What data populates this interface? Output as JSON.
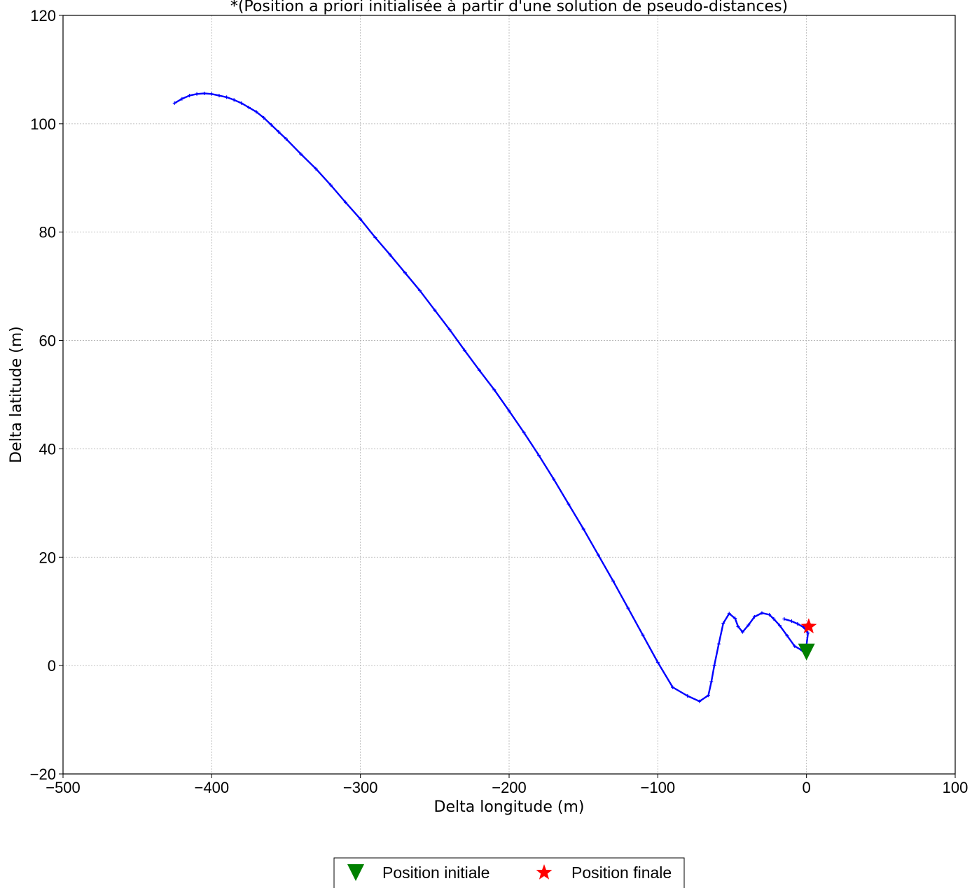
{
  "chart_data": {
    "type": "scatter",
    "title": "*(Position a priori initialisée à partir d'une solution de pseudo-distances)",
    "xlabel": "Delta longitude (m)",
    "ylabel": "Delta latitude (m)",
    "xlim": [
      -500,
      100
    ],
    "ylim": [
      -20,
      120
    ],
    "xticks": [
      -500,
      -400,
      -300,
      -200,
      -100,
      0,
      100
    ],
    "yticks": [
      -20,
      0,
      20,
      40,
      60,
      80,
      100,
      120
    ],
    "xtick_labels": [
      "−500",
      "−400",
      "−300",
      "−200",
      "−100",
      "0",
      "100"
    ],
    "ytick_labels": [
      "−20",
      "0",
      "20",
      "40",
      "60",
      "80",
      "100",
      "120"
    ],
    "grid": true,
    "legend_position": "bottom-center, below plot",
    "series": [
      {
        "marker": "plus",
        "color": "#0000ff",
        "line": true,
        "x": [
          -425,
          -420,
          -415,
          -410,
          -405,
          -400,
          -395,
          -390,
          -385,
          -380,
          -375,
          -370,
          -365,
          -360,
          -355,
          -350,
          -340,
          -330,
          -320,
          -310,
          -300,
          -290,
          -280,
          -270,
          -260,
          -250,
          -240,
          -230,
          -220,
          -210,
          -200,
          -190,
          -180,
          -170,
          -160,
          -150,
          -140,
          -130,
          -120,
          -110,
          -100,
          -90,
          -80,
          -72,
          -66,
          -64,
          -62,
          -59,
          -56,
          -52,
          -48,
          -46,
          -43,
          -39,
          -35,
          -30,
          -25,
          -22,
          -18,
          -13,
          -8,
          -3,
          0,
          1,
          -2,
          -6,
          -10,
          -15
        ],
        "y": [
          103.8,
          104.6,
          105.2,
          105.5,
          105.6,
          105.5,
          105.2,
          104.9,
          104.4,
          103.8,
          103.0,
          102.2,
          101.1,
          99.8,
          98.5,
          97.2,
          94.4,
          91.7,
          88.7,
          85.5,
          82.4,
          79.0,
          75.8,
          72.5,
          69.2,
          65.6,
          62.0,
          58.2,
          54.5,
          50.9,
          47.0,
          43.0,
          38.8,
          34.4,
          29.8,
          25.2,
          20.4,
          15.6,
          10.6,
          5.6,
          0.6,
          -4.0,
          -5.6,
          -6.6,
          -5.5,
          -3.0,
          0.0,
          4.0,
          7.8,
          9.6,
          8.7,
          7.2,
          6.2,
          7.5,
          9.0,
          9.7,
          9.4,
          8.6,
          7.4,
          5.5,
          3.6,
          2.8,
          3.8,
          6.0,
          7.1,
          7.7,
          8.2,
          8.6
        ]
      },
      {
        "name": "Position initiale",
        "marker": "triangle-down",
        "color": "#008000",
        "x": [
          0
        ],
        "y": [
          2.5
        ]
      },
      {
        "name": "Position finale",
        "marker": "star",
        "color": "#ff0000",
        "x": [
          1.5
        ],
        "y": [
          7.2
        ]
      }
    ]
  }
}
